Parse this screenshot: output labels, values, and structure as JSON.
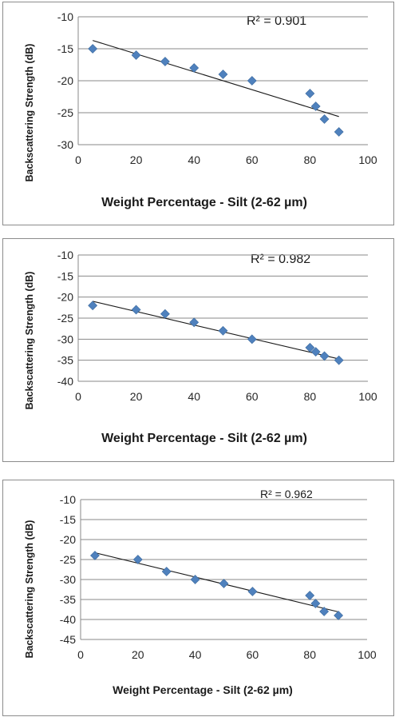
{
  "chart_data": [
    {
      "type": "scatter",
      "xlabel": "Weight Percentage - Silt (2-62 µm)",
      "ylabel": "Backscattering Strength (dB)",
      "annotation": "R² = 0.901",
      "xlim": [
        0,
        100
      ],
      "ylim": [
        -30,
        -10
      ],
      "xticks": [
        "0",
        "20",
        "40",
        "60",
        "80",
        "100"
      ],
      "yticks": [
        "-10",
        "-15",
        "-20",
        "-25",
        "-30"
      ],
      "grid": "horizontal",
      "marker_color": "#4f81bd",
      "series": [
        {
          "x": [
            5,
            20,
            30,
            40,
            50,
            60,
            80,
            82,
            85,
            90
          ],
          "y": [
            -15,
            -16,
            -17,
            -18,
            -19,
            -20,
            -22,
            -24,
            -26,
            -28
          ]
        }
      ],
      "trendline": {
        "x": [
          5,
          90
        ],
        "y": [
          -13.7,
          -25.6
        ]
      }
    },
    {
      "type": "scatter",
      "xlabel": "Weight Percentage - Silt (2-62 µm)",
      "ylabel": "Backscattering Strength (dB)",
      "annotation": "R² = 0.982",
      "xlim": [
        0,
        100
      ],
      "ylim": [
        -40,
        -10
      ],
      "xticks": [
        "0",
        "20",
        "40",
        "60",
        "80",
        "100"
      ],
      "yticks": [
        "-10",
        "-15",
        "-20",
        "-25",
        "-30",
        "-35",
        "-40"
      ],
      "grid": "horizontal",
      "marker_color": "#4f81bd",
      "series": [
        {
          "x": [
            5,
            20,
            30,
            40,
            50,
            60,
            80,
            82,
            85,
            90
          ],
          "y": [
            -22,
            -23,
            -24,
            -26,
            -28,
            -30,
            -32,
            -33,
            -34,
            -35
          ]
        }
      ],
      "trendline": {
        "x": [
          5,
          90
        ],
        "y": [
          -21.0,
          -34.7
        ]
      }
    },
    {
      "type": "scatter",
      "xlabel": "Weight Percentage - Silt (2-62 µm)",
      "ylabel": "Backscattering Strength (dB)",
      "annotation": "R² = 0.962",
      "xlim": [
        0,
        100
      ],
      "ylim": [
        -45,
        -10
      ],
      "xticks": [
        "0",
        "20",
        "40",
        "60",
        "80",
        "100"
      ],
      "yticks": [
        "-10",
        "-15",
        "-20",
        "-25",
        "-30",
        "-35",
        "-40",
        "-45"
      ],
      "grid": "horizontal",
      "marker_color": "#4f81bd",
      "series": [
        {
          "x": [
            5,
            20,
            30,
            40,
            50,
            60,
            80,
            82,
            85,
            90
          ],
          "y": [
            -24,
            -25,
            -28,
            -30,
            -31,
            -33,
            -34,
            -36,
            -38,
            -39
          ]
        }
      ],
      "trendline": {
        "x": [
          5,
          90
        ],
        "y": [
          -23.3,
          -38.1
        ]
      }
    }
  ]
}
